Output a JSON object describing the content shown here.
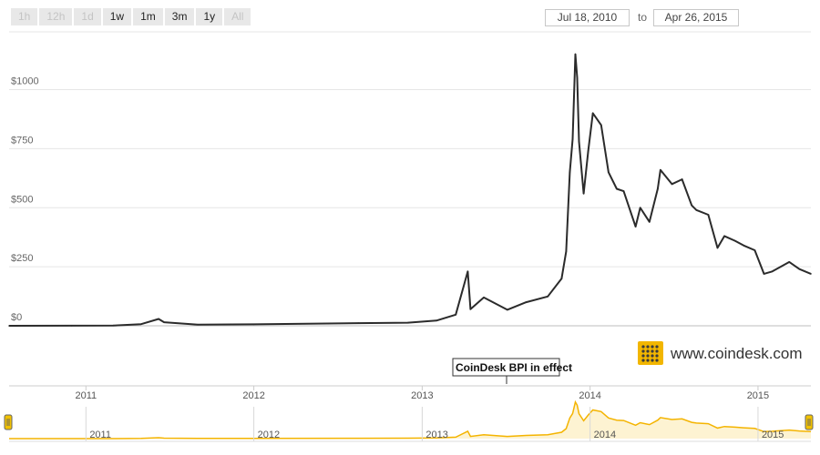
{
  "range_selector": {
    "buttons": [
      {
        "label": "1h",
        "enabled": false
      },
      {
        "label": "12h",
        "enabled": false
      },
      {
        "label": "1d",
        "enabled": false
      },
      {
        "label": "1w",
        "enabled": true
      },
      {
        "label": "1m",
        "enabled": true
      },
      {
        "label": "3m",
        "enabled": true
      },
      {
        "label": "1y",
        "enabled": true
      },
      {
        "label": "All",
        "enabled": false
      }
    ],
    "from_date": "Jul 18, 2010",
    "to_label": "to",
    "to_date": "Apr 26, 2015"
  },
  "brand": {
    "text": "www.coindesk.com"
  },
  "annotation": {
    "text": "CoinDesk BPI in effect"
  },
  "colors": {
    "main_line": "#2b2b2b",
    "navigator_line": "#f4b400",
    "navigator_fill": "#fdf3d2",
    "grid": "#e6e6e6",
    "brand_gold": "#f2b600"
  },
  "chart_data": {
    "type": "line",
    "x": [
      "2010-07-18",
      "2010-12-01",
      "2011-03-01",
      "2011-05-01",
      "2011-06-08",
      "2011-06-20",
      "2011-09-01",
      "2012-01-01",
      "2012-08-15",
      "2012-12-01",
      "2013-02-01",
      "2013-03-15",
      "2013-04-10",
      "2013-04-16",
      "2013-05-15",
      "2013-07-05",
      "2013-08-15",
      "2013-10-01",
      "2013-10-31",
      "2013-11-10",
      "2013-11-18",
      "2013-11-24",
      "2013-11-30",
      "2013-12-04",
      "2013-12-08",
      "2013-12-18",
      "2013-12-28",
      "2014-01-07",
      "2014-01-25",
      "2014-02-10",
      "2014-02-28",
      "2014-03-15",
      "2014-04-10",
      "2014-04-20",
      "2014-05-10",
      "2014-05-28",
      "2014-06-03",
      "2014-06-28",
      "2014-07-20",
      "2014-08-10",
      "2014-08-20",
      "2014-09-15",
      "2014-10-05",
      "2014-10-20",
      "2014-11-12",
      "2014-12-01",
      "2014-12-25",
      "2015-01-14",
      "2015-02-01",
      "2015-03-10",
      "2015-04-01",
      "2015-04-26"
    ],
    "series": [
      {
        "values": [
          0.06,
          0.3,
          0.9,
          7,
          29,
          15,
          5,
          6,
          11,
          13,
          22,
          47,
          230,
          70,
          120,
          68,
          100,
          124,
          200,
          315,
          650,
          790,
          1150,
          1050,
          780,
          560,
          740,
          900,
          850,
          650,
          580,
          570,
          420,
          500,
          440,
          580,
          660,
          600,
          620,
          510,
          490,
          470,
          330,
          380,
          360,
          340,
          320,
          220,
          230,
          270,
          240,
          220
        ]
      }
    ],
    "xlabel": "",
    "ylabel": "",
    "y_ticks": [
      "$0",
      "$250",
      "$500",
      "$750",
      "$1000"
    ],
    "y_tick_values": [
      0,
      250,
      500,
      750,
      1000
    ],
    "x_ticks": [
      "2011",
      "2012",
      "2013",
      "2014",
      "2015"
    ],
    "x_tick_dates": [
      "2011-01-01",
      "2012-01-01",
      "2013-01-01",
      "2014-01-01",
      "2015-01-01"
    ],
    "navigator_ticks": [
      "2011",
      "2012",
      "2013",
      "2014",
      "2015"
    ],
    "ylim": [
      0,
      1150
    ],
    "xlim": [
      "2010-07-18",
      "2015-04-26"
    ],
    "grid": true,
    "legend": "none"
  }
}
